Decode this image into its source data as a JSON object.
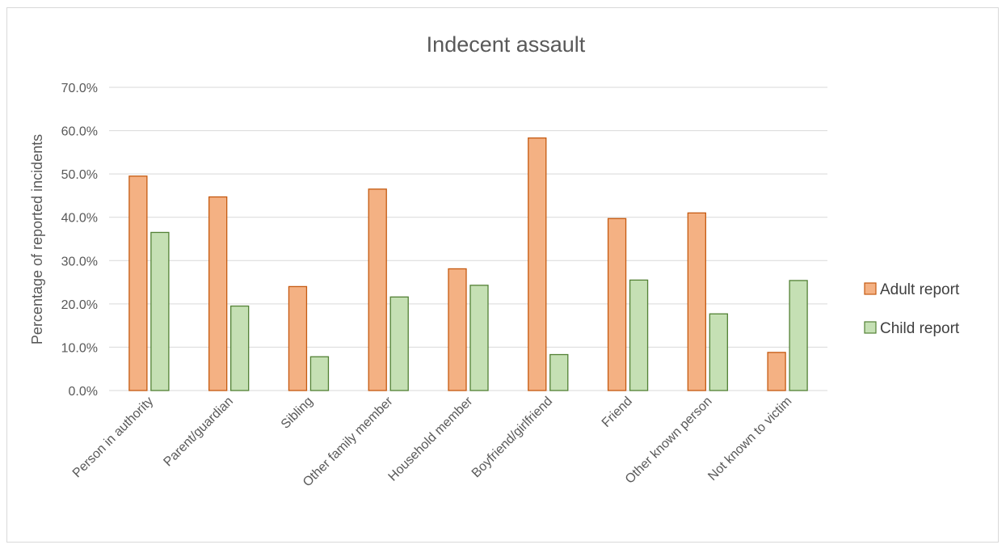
{
  "chart_data": {
    "type": "bar",
    "title": "Indecent assault",
    "xlabel": "",
    "ylabel": "Percentage of reported incidents",
    "ylim": [
      0,
      70
    ],
    "yticks": [
      "0.0%",
      "10.0%",
      "20.0%",
      "30.0%",
      "40.0%",
      "50.0%",
      "60.0%",
      "70.0%"
    ],
    "grid": true,
    "legend_position": "right",
    "categories": [
      "Person in authority",
      "Parent/guardian",
      "Sibling",
      "Other family member",
      "Household member",
      "Boyfriend/girlfriend",
      "Friend",
      "Other known person",
      "Not known to victim"
    ],
    "series": [
      {
        "name": "Adult report",
        "fill": "#f4b183",
        "stroke": "#c55a11",
        "values": [
          49.5,
          44.7,
          24.0,
          46.5,
          28.1,
          58.3,
          39.7,
          41.0,
          8.8
        ]
      },
      {
        "name": "Child report",
        "fill": "#c5e0b4",
        "stroke": "#538135",
        "values": [
          36.5,
          19.5,
          7.8,
          21.6,
          24.3,
          8.3,
          25.5,
          17.7,
          25.4
        ]
      }
    ]
  }
}
